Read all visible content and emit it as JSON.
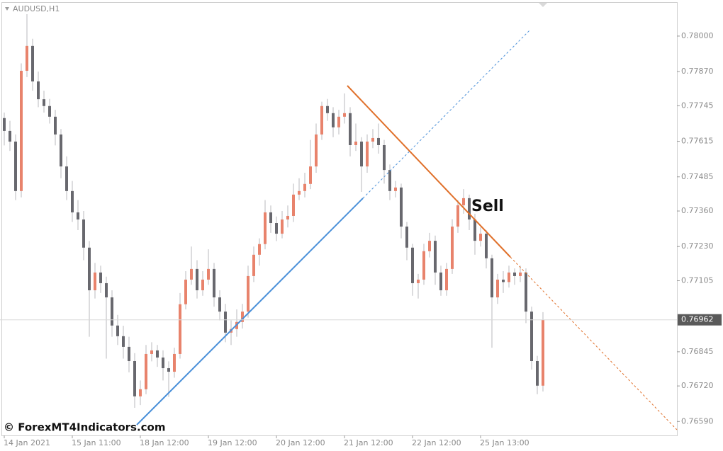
{
  "chart_data": {
    "type": "candlestick",
    "title": "AUDUSD,H1",
    "annotation": "Sell",
    "watermark": "© ForexMT4Indicators.com",
    "up_color": "#e8836c",
    "down_color": "#68686e",
    "wick_color": "#b8b8bc",
    "categories": [
      "14 Jan 2021",
      null,
      null,
      null,
      null,
      null,
      null,
      null,
      null,
      null,
      null,
      null,
      "15 Jan 11:00",
      null,
      null,
      null,
      null,
      null,
      null,
      null,
      null,
      null,
      null,
      null,
      "18 Jan 12:00",
      null,
      null,
      null,
      null,
      null,
      null,
      null,
      null,
      null,
      null,
      null,
      "19 Jan 12:00",
      null,
      null,
      null,
      null,
      null,
      null,
      null,
      null,
      null,
      null,
      null,
      "20 Jan 12:00",
      null,
      null,
      null,
      null,
      null,
      null,
      null,
      null,
      null,
      null,
      null,
      "21 Jan 12:00",
      null,
      null,
      null,
      null,
      null,
      null,
      null,
      null,
      null,
      null,
      null,
      "22 Jan 12:00",
      null,
      null,
      null,
      null,
      null,
      null,
      null,
      null,
      null,
      null,
      null,
      "25 Jan 13:00",
      null,
      null,
      null,
      null,
      null,
      null,
      null,
      null,
      null,
      null,
      null
    ],
    "ohlc": [
      [
        0.777,
        0.7772,
        0.776,
        0.77653
      ],
      [
        0.77653,
        0.7769,
        0.7758,
        0.77614
      ],
      [
        0.77614,
        0.7764,
        0.774,
        0.77433
      ],
      [
        0.77433,
        0.779,
        0.7741,
        0.77873
      ],
      [
        0.77873,
        0.7808,
        0.7785,
        0.77964
      ],
      [
        0.77964,
        0.7799,
        0.778,
        0.77834
      ],
      [
        0.77834,
        0.7787,
        0.7774,
        0.77769
      ],
      [
        0.77769,
        0.778,
        0.7772,
        0.77744
      ],
      [
        0.77744,
        0.7777,
        0.7768,
        0.77705
      ],
      [
        0.77705,
        0.7773,
        0.776,
        0.7764
      ],
      [
        0.7764,
        0.7766,
        0.7748,
        0.77523
      ],
      [
        0.77523,
        0.7756,
        0.774,
        0.77433
      ],
      [
        0.77433,
        0.7747,
        0.7732,
        0.77355
      ],
      [
        0.77355,
        0.774,
        0.7729,
        0.77329
      ],
      [
        0.77329,
        0.7736,
        0.7718,
        0.77226
      ],
      [
        0.77226,
        0.7725,
        0.769,
        0.7707
      ],
      [
        0.7707,
        0.7717,
        0.7704,
        0.77135
      ],
      [
        0.77135,
        0.7716,
        0.7706,
        0.77096
      ],
      [
        0.77096,
        0.7712,
        0.7682,
        0.77044
      ],
      [
        0.77044,
        0.7707,
        0.769,
        0.76941
      ],
      [
        0.76941,
        0.7698,
        0.7687,
        0.76902
      ],
      [
        0.76902,
        0.7694,
        0.7682,
        0.76863
      ],
      [
        0.76863,
        0.769,
        0.7677,
        0.76811
      ],
      [
        0.76811,
        0.7684,
        0.7664,
        0.76682
      ],
      [
        0.76682,
        0.7674,
        0.7665,
        0.76708
      ],
      [
        0.76708,
        0.7687,
        0.7669,
        0.76837
      ],
      [
        0.76837,
        0.7688,
        0.7681,
        0.7685
      ],
      [
        0.7685,
        0.7687,
        0.7679,
        0.76824
      ],
      [
        0.76824,
        0.7685,
        0.7674,
        0.76785
      ],
      [
        0.76785,
        0.7681,
        0.7668,
        0.76772
      ],
      [
        0.76772,
        0.7686,
        0.7675,
        0.76837
      ],
      [
        0.76837,
        0.7706,
        0.7682,
        0.77019
      ],
      [
        0.77019,
        0.7714,
        0.77,
        0.77109
      ],
      [
        0.77109,
        0.7723,
        0.7709,
        0.77148
      ],
      [
        0.77148,
        0.7718,
        0.7704,
        0.7707
      ],
      [
        0.7707,
        0.7714,
        0.7705,
        0.77109
      ],
      [
        0.77109,
        0.7722,
        0.7709,
        0.77148
      ],
      [
        0.77148,
        0.7717,
        0.7701,
        0.77044
      ],
      [
        0.77044,
        0.7707,
        0.7696,
        0.76992
      ],
      [
        0.76992,
        0.7702,
        0.7688,
        0.76915
      ],
      [
        0.76915,
        0.7696,
        0.7687,
        0.76928
      ],
      [
        0.76928,
        0.77,
        0.769,
        0.76954
      ],
      [
        0.76954,
        0.7702,
        0.7693,
        0.76992
      ],
      [
        0.76992,
        0.7716,
        0.7697,
        0.77122
      ],
      [
        0.77122,
        0.7723,
        0.771,
        0.772
      ],
      [
        0.772,
        0.7726,
        0.7716,
        0.77239
      ],
      [
        0.77239,
        0.774,
        0.7722,
        0.77355
      ],
      [
        0.77355,
        0.7738,
        0.7728,
        0.77316
      ],
      [
        0.77316,
        0.7734,
        0.7725,
        0.77277
      ],
      [
        0.77277,
        0.7736,
        0.7726,
        0.77329
      ],
      [
        0.77329,
        0.7738,
        0.773,
        0.77342
      ],
      [
        0.77342,
        0.7746,
        0.7732,
        0.7742
      ],
      [
        0.7742,
        0.7748,
        0.774,
        0.77433
      ],
      [
        0.77433,
        0.775,
        0.7741,
        0.77459
      ],
      [
        0.77459,
        0.7762,
        0.7744,
        0.77523
      ],
      [
        0.77523,
        0.7768,
        0.775,
        0.7764
      ],
      [
        0.7764,
        0.7776,
        0.7762,
        0.77744
      ],
      [
        0.77744,
        0.7777,
        0.7769,
        0.77718
      ],
      [
        0.77718,
        0.7774,
        0.7763,
        0.77666
      ],
      [
        0.77666,
        0.7773,
        0.7764,
        0.77705
      ],
      [
        0.77705,
        0.7779,
        0.7768,
        0.77718
      ],
      [
        0.77718,
        0.7774,
        0.7756,
        0.77601
      ],
      [
        0.77601,
        0.7768,
        0.7758,
        0.77614
      ],
      [
        0.77614,
        0.7763,
        0.7743,
        0.77523
      ],
      [
        0.77523,
        0.7764,
        0.775,
        0.77614
      ],
      [
        0.77614,
        0.7766,
        0.7759,
        0.77627
      ],
      [
        0.77627,
        0.7768,
        0.7757,
        0.77601
      ],
      [
        0.77601,
        0.7762,
        0.7746,
        0.7751
      ],
      [
        0.7751,
        0.7753,
        0.774,
        0.77433
      ],
      [
        0.77433,
        0.7747,
        0.7741,
        0.77446
      ],
      [
        0.77446,
        0.7746,
        0.7726,
        0.77303
      ],
      [
        0.77303,
        0.7732,
        0.7718,
        0.77226
      ],
      [
        0.77226,
        0.7724,
        0.7705,
        0.77096
      ],
      [
        0.77096,
        0.7713,
        0.7704,
        0.77109
      ],
      [
        0.77109,
        0.7724,
        0.7709,
        0.77213
      ],
      [
        0.77213,
        0.7728,
        0.7719,
        0.77251
      ],
      [
        0.77251,
        0.7727,
        0.7709,
        0.77135
      ],
      [
        0.77135,
        0.7716,
        0.7705,
        0.7707
      ],
      [
        0.7707,
        0.7717,
        0.7705,
        0.77148
      ],
      [
        0.77148,
        0.7733,
        0.7713,
        0.77303
      ],
      [
        0.77303,
        0.774,
        0.7728,
        0.77381
      ],
      [
        0.77381,
        0.7744,
        0.7735,
        0.77407
      ],
      [
        0.77407,
        0.7742,
        0.7729,
        0.77329
      ],
      [
        0.77329,
        0.7735,
        0.772,
        0.77251
      ],
      [
        0.77251,
        0.773,
        0.7723,
        0.77277
      ],
      [
        0.77277,
        0.7729,
        0.7715,
        0.77187
      ],
      [
        0.77187,
        0.772,
        0.7686,
        0.77044
      ],
      [
        0.77044,
        0.7713,
        0.7702,
        0.77109
      ],
      [
        0.77109,
        0.7714,
        0.7706,
        0.771
      ],
      [
        0.771,
        0.7716,
        0.7708,
        0.77135
      ],
      [
        0.77135,
        0.7715,
        0.7709,
        0.77122
      ],
      [
        0.77122,
        0.7716,
        0.771,
        0.77135
      ],
      [
        0.77135,
        0.7715,
        0.7695,
        0.76992
      ],
      [
        0.76992,
        0.7701,
        0.7678,
        0.76811
      ],
      [
        0.76811,
        0.7683,
        0.7669,
        0.76721
      ],
      [
        0.76721,
        0.7699,
        0.767,
        0.76962
      ]
    ],
    "last_price": 0.76962,
    "ylim": [
      0.76539,
      0.78119
    ],
    "yticks": [
      {
        "value": 0.78,
        "label": "0.78000"
      },
      {
        "value": 0.7787,
        "label": "0.77870"
      },
      {
        "value": 0.77745,
        "label": "0.77745"
      },
      {
        "value": 0.77615,
        "label": "0.77615"
      },
      {
        "value": 0.77485,
        "label": "0.77485"
      },
      {
        "value": 0.7736,
        "label": "0.77360"
      },
      {
        "value": 0.7723,
        "label": "0.77230"
      },
      {
        "value": 0.77105,
        "label": "0.77105"
      },
      {
        "value": 0.76845,
        "label": "0.76845"
      },
      {
        "value": 0.7672,
        "label": "0.76720"
      },
      {
        "value": 0.7659,
        "label": "0.76590"
      }
    ]
  }
}
